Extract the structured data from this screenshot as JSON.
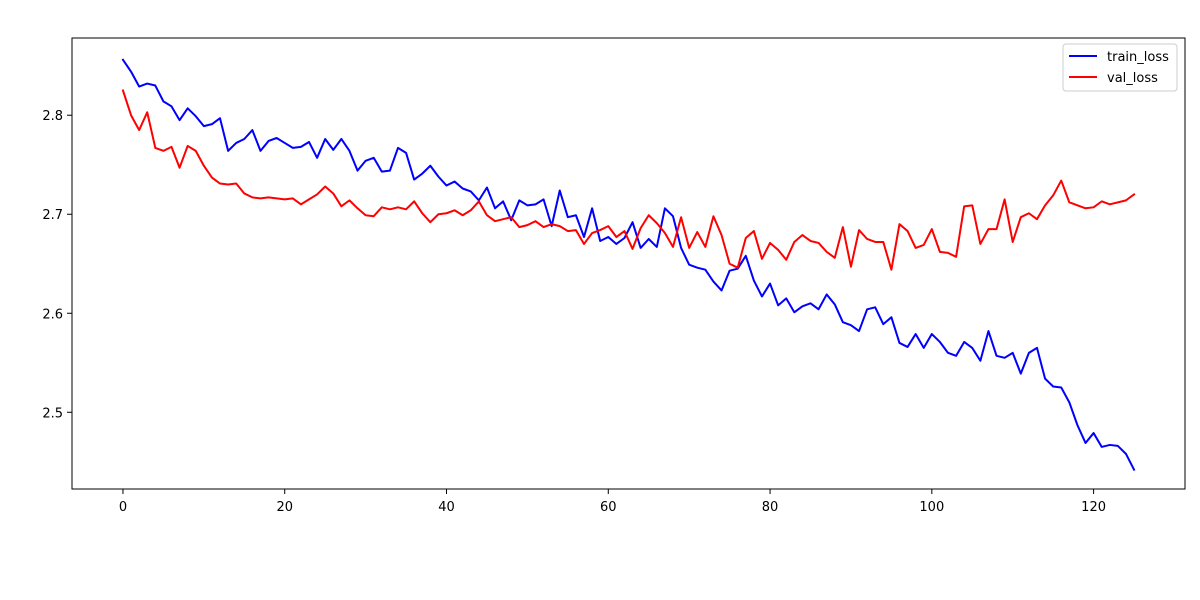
{
  "chart_data": {
    "type": "line",
    "title": "",
    "xlabel": "",
    "ylabel": "",
    "xlim": [
      -6.3,
      131.3
    ],
    "ylim": [
      2.4225,
      2.878
    ],
    "xticks": [
      0,
      20,
      40,
      60,
      80,
      100,
      120
    ],
    "yticks": [
      2.5,
      2.6,
      2.7,
      2.8
    ],
    "grid": false,
    "legend_position": "top-right",
    "series": [
      {
        "name": "train_loss",
        "color": "#0000ff",
        "values": [
          2.856,
          2.844,
          2.829,
          2.832,
          2.83,
          2.814,
          2.809,
          2.795,
          2.807,
          2.799,
          2.789,
          2.791,
          2.797,
          2.764,
          2.772,
          2.776,
          2.785,
          2.764,
          2.774,
          2.777,
          2.772,
          2.767,
          2.768,
          2.773,
          2.757,
          2.776,
          2.765,
          2.776,
          2.764,
          2.744,
          2.754,
          2.757,
          2.743,
          2.744,
          2.767,
          2.762,
          2.735,
          2.741,
          2.749,
          2.738,
          2.729,
          2.733,
          2.726,
          2.723,
          2.714,
          2.727,
          2.706,
          2.713,
          2.694,
          2.714,
          2.709,
          2.71,
          2.715,
          2.688,
          2.724,
          2.697,
          2.699,
          2.677,
          2.706,
          2.673,
          2.677,
          2.67,
          2.676,
          2.692,
          2.666,
          2.675,
          2.667,
          2.706,
          2.698,
          2.666,
          2.649,
          2.646,
          2.644,
          2.632,
          2.623,
          2.643,
          2.645,
          2.658,
          2.633,
          2.617,
          2.63,
          2.608,
          2.615,
          2.601,
          2.607,
          2.61,
          2.604,
          2.619,
          2.609,
          2.591,
          2.588,
          2.582,
          2.604,
          2.606,
          2.589,
          2.596,
          2.57,
          2.566,
          2.579,
          2.565,
          2.579,
          2.571,
          2.56,
          2.557,
          2.571,
          2.565,
          2.552,
          2.582,
          2.557,
          2.555,
          2.56,
          2.539,
          2.56,
          2.565,
          2.534,
          2.526,
          2.525,
          2.51,
          2.487,
          2.469,
          2.479,
          2.465,
          2.467,
          2.466,
          2.458,
          2.442
        ]
      },
      {
        "name": "val_loss",
        "color": "#ff0000",
        "values": [
          2.825,
          2.8,
          2.785,
          2.803,
          2.767,
          2.764,
          2.768,
          2.747,
          2.769,
          2.764,
          2.749,
          2.737,
          2.731,
          2.73,
          2.731,
          2.721,
          2.717,
          2.716,
          2.717,
          2.716,
          2.715,
          2.716,
          2.71,
          2.715,
          2.72,
          2.728,
          2.721,
          2.708,
          2.714,
          2.706,
          2.699,
          2.698,
          2.707,
          2.705,
          2.707,
          2.705,
          2.713,
          2.701,
          2.692,
          2.7,
          2.701,
          2.704,
          2.699,
          2.704,
          2.713,
          2.699,
          2.693,
          2.695,
          2.697,
          2.687,
          2.689,
          2.693,
          2.687,
          2.69,
          2.688,
          2.683,
          2.684,
          2.67,
          2.681,
          2.684,
          2.688,
          2.677,
          2.683,
          2.665,
          2.686,
          2.699,
          2.691,
          2.681,
          2.667,
          2.697,
          2.666,
          2.682,
          2.667,
          2.698,
          2.679,
          2.65,
          2.646,
          2.676,
          2.683,
          2.655,
          2.671,
          2.664,
          2.654,
          2.672,
          2.679,
          2.673,
          2.671,
          2.662,
          2.656,
          2.687,
          2.647,
          2.684,
          2.675,
          2.672,
          2.672,
          2.644,
          2.69,
          2.683,
          2.666,
          2.669,
          2.685,
          2.662,
          2.661,
          2.657,
          2.708,
          2.709,
          2.67,
          2.685,
          2.685,
          2.715,
          2.672,
          2.697,
          2.701,
          2.695,
          2.709,
          2.719,
          2.734,
          2.712,
          2.709,
          2.706,
          2.707,
          2.713,
          2.71,
          2.712,
          2.714,
          2.72
        ]
      }
    ]
  }
}
